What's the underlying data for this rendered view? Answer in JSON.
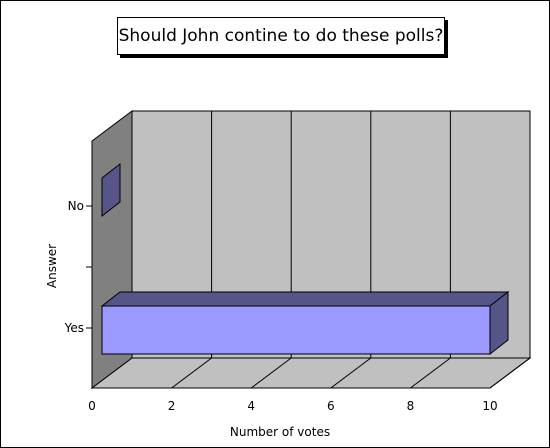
{
  "chart_data": {
    "type": "bar",
    "orientation": "horizontal",
    "style": "3d",
    "title": "Should John contine to do these polls?",
    "xlabel": "Number of votes",
    "ylabel": "Answer",
    "categories": [
      "Yes",
      "No"
    ],
    "values": [
      10,
      0
    ],
    "xlim": [
      0,
      10
    ],
    "xticks": [
      0,
      2,
      4,
      6,
      8,
      10
    ],
    "grid": "vertical",
    "legend": "none",
    "colors": {
      "bar_face": "#9999ff",
      "bar_side": "#555588",
      "back_wall": "#c0c0c0",
      "side_wall": "#808080",
      "floor": "#c0c0c0"
    }
  }
}
